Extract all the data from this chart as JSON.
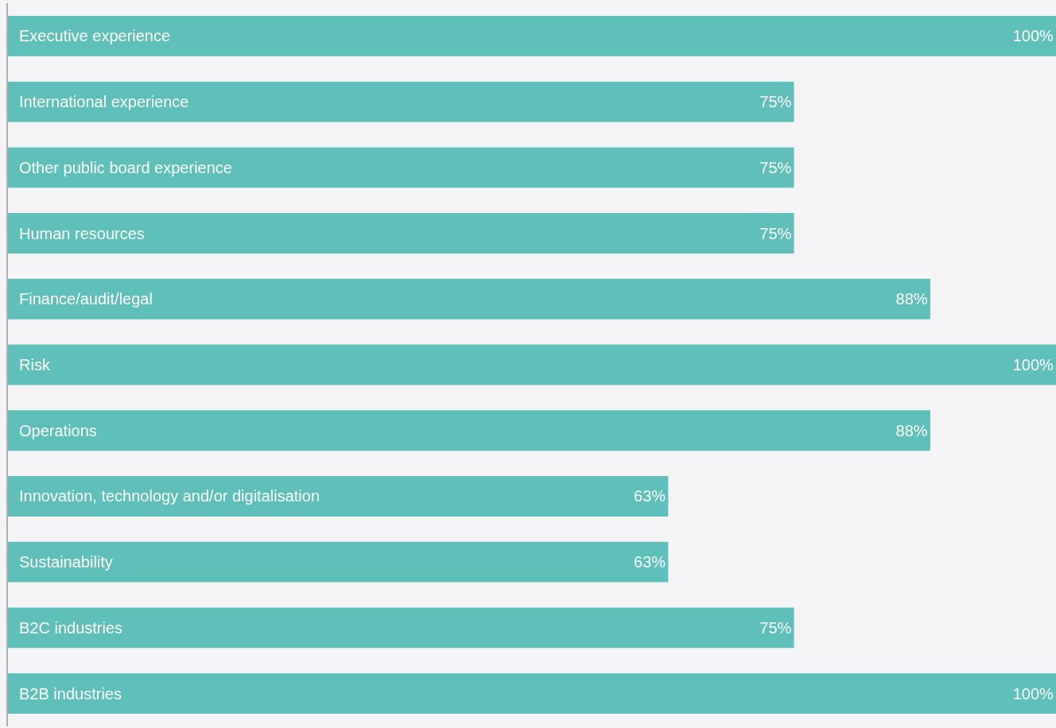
{
  "chart_data": {
    "type": "bar",
    "orientation": "horizontal",
    "categories": [
      "Executive experience",
      "International experience",
      "Other public board experience",
      "Human resources",
      "Finance/audit/legal",
      "Risk",
      "Operations",
      "Innovation, technology and/or digitalisation",
      "Sustainability",
      "B2C industries",
      "B2B industries"
    ],
    "values": [
      100,
      75,
      75,
      75,
      88,
      100,
      88,
      63,
      63,
      75,
      100
    ],
    "value_labels": [
      "100%",
      "75%",
      "75%",
      "75%",
      "88%",
      "100%",
      "88%",
      "63%",
      "63%",
      "75%",
      "100%"
    ],
    "color": "#5fbfbb",
    "legend": false
  }
}
